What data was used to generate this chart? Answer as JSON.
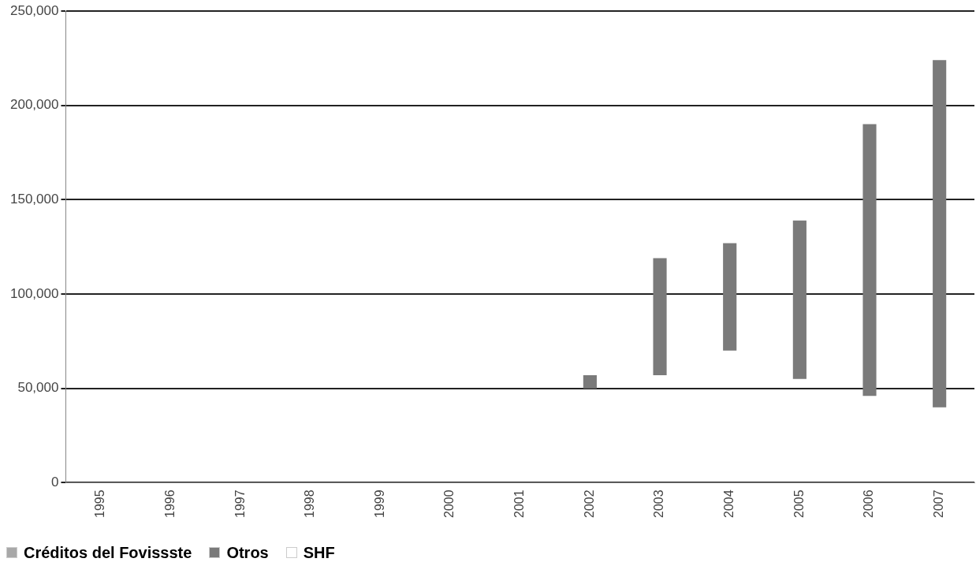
{
  "chart_data": {
    "type": "bar",
    "categories": [
      "1995",
      "1996",
      "1997",
      "1998",
      "1999",
      "2000",
      "2001",
      "2002",
      "2003",
      "2004",
      "2005",
      "2006",
      "2007"
    ],
    "series": [
      {
        "name": "Créditos del Fovissste",
        "color": "#a8a8a8",
        "values": [
          null,
          null,
          null,
          null,
          null,
          null,
          null,
          null,
          null,
          null,
          null,
          null,
          null
        ]
      },
      {
        "name": "Otros",
        "color": "#7a7a7a",
        "values": [
          null,
          null,
          null,
          null,
          null,
          null,
          null,
          7000,
          62000,
          57000,
          84000,
          144000,
          184000
        ],
        "base": [
          null,
          null,
          null,
          null,
          null,
          null,
          null,
          50000,
          57000,
          70000,
          55000,
          46000,
          40000
        ]
      },
      {
        "name": "SHF",
        "color": "#ffffff",
        "values": [
          null,
          null,
          null,
          null,
          null,
          null,
          null,
          null,
          null,
          null,
          null,
          null,
          null
        ]
      }
    ],
    "ylim": [
      0,
      250000
    ],
    "yticks": [
      {
        "value": 0,
        "label": "0"
      },
      {
        "value": 50000,
        "label": "50,000"
      },
      {
        "value": 100000,
        "label": "100,000"
      },
      {
        "value": 150000,
        "label": "150,000"
      },
      {
        "value": 200000,
        "label": "200,000"
      },
      {
        "value": 250000,
        "label": "250,000"
      }
    ],
    "grid": "y",
    "legend": "bottom left"
  }
}
